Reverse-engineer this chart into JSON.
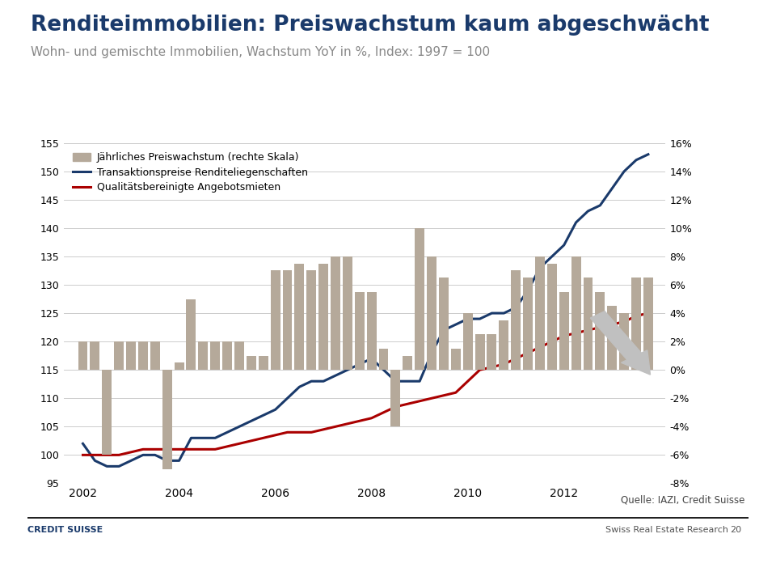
{
  "title": "Renditeimmobilien: Preiswachstum kaum abgeschwächt",
  "subtitle": "Wohn- und gemischte Immobilien, Wachstum YoY in %, Index: 1997 = 100",
  "title_color": "#1a3a6b",
  "subtitle_color": "#888888",
  "source_text": "Quelle: IAZI, Credit Suisse",
  "footer_left": "CREDIT SUISSE",
  "footer_right": "Swiss Real Estate Research",
  "footer_page": "20",
  "ylim_left": [
    95,
    155
  ],
  "ylim_right": [
    -0.08,
    0.16
  ],
  "yticks_left": [
    95,
    100,
    105,
    110,
    115,
    120,
    125,
    130,
    135,
    140,
    145,
    150,
    155
  ],
  "ytick_labels_right": [
    "-8%",
    "-6%",
    "-4%",
    "-2%",
    "0%",
    "2%",
    "4%",
    "6%",
    "8%",
    "10%",
    "12%",
    "14%",
    "16%"
  ],
  "bar_color": "#b5a99a",
  "line1_color": "#1a3a6b",
  "line2_color": "#aa0000",
  "legend_bar": "Jährliches Preiswachstum (rechte Skala)",
  "legend_line1": "Transaktionspreise Renditeliegenschaften",
  "legend_line2": "Qualitätsbereinigte Angebotsmieten",
  "bar_x": [
    2002.0,
    2002.25,
    2002.5,
    2002.75,
    2003.0,
    2003.25,
    2003.5,
    2003.75,
    2004.0,
    2004.25,
    2004.5,
    2004.75,
    2005.0,
    2005.25,
    2005.5,
    2005.75,
    2006.0,
    2006.25,
    2006.5,
    2006.75,
    2007.0,
    2007.25,
    2007.5,
    2007.75,
    2008.0,
    2008.25,
    2008.5,
    2008.75,
    2009.0,
    2009.25,
    2009.5,
    2009.75,
    2010.0,
    2010.25,
    2010.5,
    2010.75,
    2011.0,
    2011.25,
    2011.5,
    2011.75,
    2012.0,
    2012.25,
    2012.5,
    2012.75,
    2013.0,
    2013.25,
    2013.5,
    2013.75
  ],
  "bar_values": [
    0.02,
    0.02,
    -0.06,
    0.02,
    0.02,
    0.02,
    0.02,
    -0.07,
    0.005,
    0.05,
    0.02,
    0.02,
    0.02,
    0.02,
    0.01,
    0.01,
    0.07,
    0.07,
    0.075,
    0.07,
    0.075,
    0.08,
    0.08,
    0.055,
    0.055,
    0.015,
    -0.04,
    0.01,
    0.1,
    0.08,
    0.065,
    0.015,
    0.04,
    0.025,
    0.025,
    0.035,
    0.07,
    0.065,
    0.08,
    0.075,
    0.055,
    0.08,
    0.065,
    0.055,
    0.045,
    0.04,
    0.065,
    0.065
  ],
  "line1_x": [
    2002.0,
    2002.25,
    2002.5,
    2002.75,
    2003.0,
    2003.25,
    2003.5,
    2003.75,
    2004.0,
    2004.25,
    2004.5,
    2004.75,
    2005.0,
    2005.25,
    2005.5,
    2005.75,
    2006.0,
    2006.25,
    2006.5,
    2006.75,
    2007.0,
    2007.25,
    2007.5,
    2007.75,
    2008.0,
    2008.25,
    2008.5,
    2008.75,
    2009.0,
    2009.25,
    2009.5,
    2009.75,
    2010.0,
    2010.25,
    2010.5,
    2010.75,
    2011.0,
    2011.25,
    2011.5,
    2011.75,
    2012.0,
    2012.25,
    2012.5,
    2012.75,
    2013.0,
    2013.25,
    2013.5,
    2013.75
  ],
  "line1_y": [
    102,
    99,
    98,
    98,
    99,
    100,
    100,
    99,
    99,
    103,
    103,
    103,
    104,
    105,
    106,
    107,
    108,
    110,
    112,
    113,
    113,
    114,
    115,
    116,
    117,
    115,
    113,
    113,
    113,
    118,
    122,
    123,
    124,
    124,
    125,
    125,
    126,
    129,
    133,
    135,
    137,
    141,
    143,
    144,
    147,
    150,
    152,
    153
  ],
  "line2_x": [
    2002.0,
    2002.25,
    2002.5,
    2002.75,
    2003.0,
    2003.25,
    2003.5,
    2003.75,
    2004.0,
    2004.25,
    2004.5,
    2004.75,
    2005.0,
    2005.25,
    2005.5,
    2005.75,
    2006.0,
    2006.25,
    2006.5,
    2006.75,
    2007.0,
    2007.25,
    2007.5,
    2007.75,
    2008.0,
    2008.25,
    2008.5,
    2008.75,
    2009.0,
    2009.25,
    2009.5,
    2009.75,
    2010.0,
    2010.25,
    2010.5,
    2010.75,
    2011.0,
    2011.25,
    2011.5,
    2011.75,
    2012.0,
    2012.25,
    2012.5,
    2012.75,
    2013.0,
    2013.25,
    2013.5,
    2013.75
  ],
  "line2_y": [
    100,
    100,
    100,
    100,
    100.5,
    101,
    101,
    101,
    101,
    101,
    101,
    101,
    101.5,
    102,
    102.5,
    103,
    103.5,
    104,
    104,
    104,
    104.5,
    105,
    105.5,
    106,
    106.5,
    107.5,
    108.5,
    109,
    109.5,
    110,
    110.5,
    111,
    113,
    115,
    115.5,
    116,
    117,
    118,
    119,
    120,
    121,
    121.5,
    122,
    122.5,
    123,
    123.5,
    124.5,
    125
  ]
}
